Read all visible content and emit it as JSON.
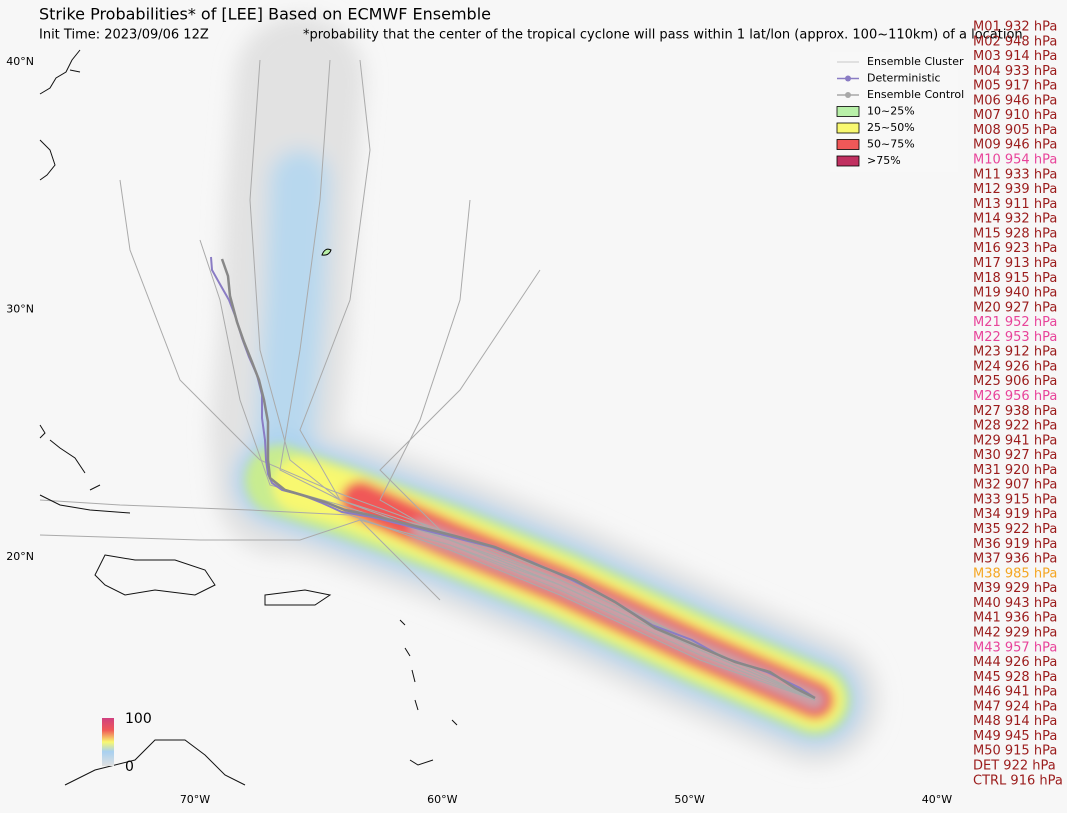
{
  "header": {
    "title": "Strike Probabilities* of [LEE] Based on ECMWF Ensemble",
    "init_time": "Init Time: 2023/09/06 12Z",
    "note": "*probability that the center of the tropical cyclone will pass within 1 lat/lon (approx. 100~110km) of a location"
  },
  "legend": [
    {
      "label": "Ensemble Cluster",
      "kind": "line",
      "color": "#c8c8c8"
    },
    {
      "label": "Deterministic",
      "kind": "marker-line",
      "color": "#8a7cc4"
    },
    {
      "label": "Ensemble Control",
      "kind": "marker-line",
      "color": "#a8a8a8"
    },
    {
      "label": "10~25%",
      "kind": "box",
      "color": "#b8f0a8"
    },
    {
      "label": "25~50%",
      "kind": "box",
      "color": "#f8f870"
    },
    {
      "label": "50~75%",
      "kind": "box",
      "color": "#f05858"
    },
    {
      "label": ">75%",
      "kind": "box",
      "color": "#c03060"
    }
  ],
  "colorbar": {
    "max_label": "100",
    "min_label": "0"
  },
  "lat_labels": [
    "40°N",
    "30°N",
    "20°N"
  ],
  "lon_labels": [
    "70°W",
    "60°W",
    "50°W",
    "40°W"
  ],
  "members": [
    {
      "label": "M01 932 hPa",
      "color": "#9b1c1c"
    },
    {
      "label": "M02 948 hPa",
      "color": "#9b1c1c"
    },
    {
      "label": "M03 914 hPa",
      "color": "#9b1c1c"
    },
    {
      "label": "M04 933 hPa",
      "color": "#9b1c1c"
    },
    {
      "label": "M05 917 hPa",
      "color": "#9b1c1c"
    },
    {
      "label": "M06 946 hPa",
      "color": "#9b1c1c"
    },
    {
      "label": "M07 910 hPa",
      "color": "#9b1c1c"
    },
    {
      "label": "M08 905 hPa",
      "color": "#9b1c1c"
    },
    {
      "label": "M09 946 hPa",
      "color": "#9b1c1c"
    },
    {
      "label": "M10 954 hPa",
      "color": "#e8449a"
    },
    {
      "label": "M11 933 hPa",
      "color": "#9b1c1c"
    },
    {
      "label": "M12 939 hPa",
      "color": "#9b1c1c"
    },
    {
      "label": "M13 911 hPa",
      "color": "#9b1c1c"
    },
    {
      "label": "M14 932 hPa",
      "color": "#9b1c1c"
    },
    {
      "label": "M15 928 hPa",
      "color": "#9b1c1c"
    },
    {
      "label": "M16 923 hPa",
      "color": "#9b1c1c"
    },
    {
      "label": "M17 913 hPa",
      "color": "#9b1c1c"
    },
    {
      "label": "M18 915 hPa",
      "color": "#9b1c1c"
    },
    {
      "label": "M19 940 hPa",
      "color": "#9b1c1c"
    },
    {
      "label": "M20 927 hPa",
      "color": "#9b1c1c"
    },
    {
      "label": "M21 952 hPa",
      "color": "#e8449a"
    },
    {
      "label": "M22 953 hPa",
      "color": "#e8449a"
    },
    {
      "label": "M23 912 hPa",
      "color": "#9b1c1c"
    },
    {
      "label": "M24 926 hPa",
      "color": "#9b1c1c"
    },
    {
      "label": "M25 906 hPa",
      "color": "#9b1c1c"
    },
    {
      "label": "M26 956 hPa",
      "color": "#e8449a"
    },
    {
      "label": "M27 938 hPa",
      "color": "#9b1c1c"
    },
    {
      "label": "M28 922 hPa",
      "color": "#9b1c1c"
    },
    {
      "label": "M29 941 hPa",
      "color": "#9b1c1c"
    },
    {
      "label": "M30 927 hPa",
      "color": "#9b1c1c"
    },
    {
      "label": "M31 920 hPa",
      "color": "#9b1c1c"
    },
    {
      "label": "M32 907 hPa",
      "color": "#9b1c1c"
    },
    {
      "label": "M33 915 hPa",
      "color": "#9b1c1c"
    },
    {
      "label": "M34 919 hPa",
      "color": "#9b1c1c"
    },
    {
      "label": "M35 922 hPa",
      "color": "#9b1c1c"
    },
    {
      "label": "M36 919 hPa",
      "color": "#9b1c1c"
    },
    {
      "label": "M37 936 hPa",
      "color": "#9b1c1c"
    },
    {
      "label": "M38 985 hPa",
      "color": "#f5a623"
    },
    {
      "label": "M39 929 hPa",
      "color": "#9b1c1c"
    },
    {
      "label": "M40 943 hPa",
      "color": "#9b1c1c"
    },
    {
      "label": "M41 936 hPa",
      "color": "#9b1c1c"
    },
    {
      "label": "M42 929 hPa",
      "color": "#9b1c1c"
    },
    {
      "label": "M43 957 hPa",
      "color": "#e8449a"
    },
    {
      "label": "M44 926 hPa",
      "color": "#9b1c1c"
    },
    {
      "label": "M45 928 hPa",
      "color": "#9b1c1c"
    },
    {
      "label": "M46 941 hPa",
      "color": "#9b1c1c"
    },
    {
      "label": "M47 924 hPa",
      "color": "#9b1c1c"
    },
    {
      "label": "M48 914 hPa",
      "color": "#9b1c1c"
    },
    {
      "label": "M49 945 hPa",
      "color": "#9b1c1c"
    },
    {
      "label": "M50 915 hPa",
      "color": "#9b1c1c"
    },
    {
      "label": "DET 922 hPa",
      "color": "#9b1c1c"
    },
    {
      "label": "CTRL 916 hPa",
      "color": "#9b1c1c"
    }
  ]
}
